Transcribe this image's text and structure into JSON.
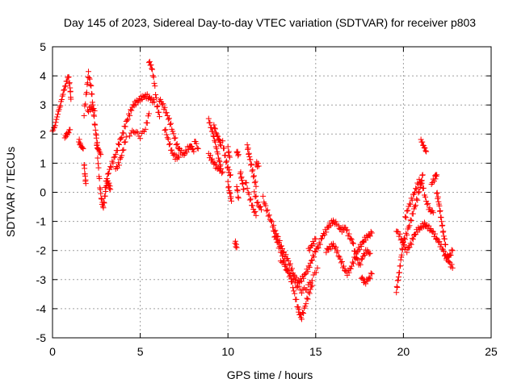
{
  "chart_data": {
    "type": "scatter",
    "title": "Day 145 of 2023, Sidereal Day-to-day VTEC variation (SDTVAR) for receiver p803",
    "xlabel": "GPS time / hours",
    "ylabel": "SDTVAR / TECUs",
    "xlim": [
      0,
      25
    ],
    "ylim": [
      -5,
      5
    ],
    "xticks": [
      0,
      5,
      10,
      15,
      20,
      25
    ],
    "yticks": [
      -5,
      -4,
      -3,
      -2,
      -1,
      0,
      1,
      2,
      3,
      4,
      5
    ],
    "grid": true,
    "marker": "+",
    "color": "#ff0000",
    "series": [
      {
        "name": "SDTVAR",
        "segments": [
          [
            [
              0.0,
              2.1
            ],
            [
              0.15,
              2.3
            ],
            [
              0.3,
              2.7
            ],
            [
              0.45,
              3.0
            ],
            [
              0.6,
              3.4
            ],
            [
              0.75,
              3.7
            ],
            [
              0.9,
              4.0
            ],
            [
              1.0,
              3.6
            ],
            [
              1.05,
              3.2
            ]
          ],
          [
            [
              0.7,
              1.9
            ],
            [
              0.85,
              2.0
            ],
            [
              1.0,
              2.15
            ]
          ],
          [
            [
              1.5,
              1.8
            ],
            [
              1.6,
              1.6
            ],
            [
              1.75,
              1.5
            ]
          ],
          [
            [
              1.8,
              1.0
            ],
            [
              1.85,
              0.6
            ],
            [
              1.9,
              0.3
            ]
          ],
          [
            [
              1.8,
              2.7
            ],
            [
              1.95,
              3.5
            ],
            [
              2.05,
              4.1
            ],
            [
              2.2,
              3.6
            ],
            [
              2.3,
              3.0
            ],
            [
              2.4,
              2.4
            ],
            [
              2.5,
              1.9
            ],
            [
              2.6,
              1.0
            ],
            [
              2.7,
              0.2
            ],
            [
              2.8,
              -0.3
            ],
            [
              2.9,
              -0.5
            ],
            [
              3.0,
              -0.1
            ],
            [
              3.1,
              0.4
            ],
            [
              3.2,
              0.3
            ],
            [
              3.3,
              0.1
            ]
          ],
          [
            [
              2.0,
              2.8
            ],
            [
              2.2,
              2.9
            ],
            [
              2.4,
              2.8
            ]
          ],
          [
            [
              2.5,
              1.8
            ],
            [
              2.6,
              1.5
            ],
            [
              2.75,
              1.3
            ]
          ],
          [
            [
              3.0,
              0.2
            ],
            [
              3.2,
              0.7
            ],
            [
              3.4,
              1.0
            ],
            [
              3.6,
              1.3
            ],
            [
              3.8,
              1.7
            ],
            [
              4.0,
              2.0
            ],
            [
              4.2,
              2.4
            ],
            [
              4.4,
              2.7
            ],
            [
              4.6,
              3.0
            ],
            [
              4.8,
              3.1
            ],
            [
              5.0,
              3.2
            ],
            [
              5.2,
              3.3
            ],
            [
              5.4,
              3.3
            ],
            [
              5.6,
              3.2
            ],
            [
              5.8,
              3.1
            ]
          ],
          [
            [
              3.6,
              0.8
            ],
            [
              3.8,
              1.0
            ],
            [
              4.0,
              1.4
            ],
            [
              4.2,
              1.9
            ]
          ],
          [
            [
              4.4,
              2.0
            ],
            [
              4.7,
              2.1
            ],
            [
              5.0,
              1.9
            ],
            [
              5.3,
              2.2
            ],
            [
              5.5,
              2.7
            ]
          ],
          [
            [
              5.5,
              4.5
            ],
            [
              5.65,
              4.3
            ],
            [
              5.8,
              3.8
            ],
            [
              5.95,
              3.0
            ],
            [
              6.1,
              2.6
            ]
          ],
          [
            [
              6.1,
              3.2
            ],
            [
              6.3,
              3.0
            ],
            [
              6.5,
              2.7
            ],
            [
              6.7,
              2.4
            ],
            [
              6.9,
              2.0
            ],
            [
              7.1,
              1.6
            ],
            [
              7.3,
              1.4
            ],
            [
              7.5,
              1.3
            ],
            [
              7.7,
              1.5
            ],
            [
              7.9,
              1.6
            ],
            [
              8.05,
              1.4
            ]
          ],
          [
            [
              6.4,
              2.2
            ],
            [
              6.6,
              1.8
            ],
            [
              6.8,
              1.4
            ],
            [
              7.0,
              1.2
            ],
            [
              7.2,
              1.2
            ]
          ],
          [
            [
              8.1,
              1.8
            ],
            [
              8.3,
              1.5
            ]
          ],
          [
            [
              8.9,
              2.5
            ],
            [
              9.05,
              2.2
            ],
            [
              9.2,
              1.9
            ],
            [
              9.35,
              1.5
            ],
            [
              9.5,
              1.1
            ],
            [
              9.6,
              0.8
            ]
          ],
          [
            [
              8.9,
              1.3
            ],
            [
              9.1,
              1.1
            ],
            [
              9.3,
              0.9
            ],
            [
              9.5,
              0.8
            ],
            [
              9.7,
              0.7
            ]
          ],
          [
            [
              9.2,
              2.3
            ],
            [
              9.35,
              2.0
            ],
            [
              9.5,
              1.8
            ],
            [
              9.6,
              1.6
            ]
          ],
          [
            [
              9.7,
              1.7
            ],
            [
              9.85,
              1.2
            ],
            [
              10.0,
              0.8
            ],
            [
              10.15,
              0.6
            ]
          ],
          [
            [
              10.0,
              1.5
            ],
            [
              10.1,
              1.2
            ]
          ],
          [
            [
              10.0,
              0.3
            ],
            [
              10.1,
              0.0
            ],
            [
              10.2,
              -0.3
            ]
          ],
          [
            [
              10.5,
              0.2
            ],
            [
              10.6,
              -0.2
            ]
          ],
          [
            [
              10.5,
              1.4
            ],
            [
              10.6,
              1.3
            ]
          ],
          [
            [
              10.7,
              0.7
            ],
            [
              10.8,
              0.4
            ],
            [
              10.9,
              0.1
            ]
          ],
          [
            [
              10.4,
              -1.7
            ],
            [
              10.5,
              -1.9
            ]
          ],
          [
            [
              11.0,
              0.4
            ],
            [
              11.2,
              -0.1
            ],
            [
              11.4,
              -0.5
            ],
            [
              11.6,
              -0.8
            ]
          ],
          [
            [
              11.1,
              1.6
            ],
            [
              11.2,
              1.3
            ],
            [
              11.3,
              1.0
            ],
            [
              11.45,
              0.6
            ],
            [
              11.6,
              0.2
            ]
          ],
          [
            [
              11.5,
              0.0
            ],
            [
              11.7,
              -0.4
            ],
            [
              11.9,
              -0.6
            ]
          ],
          [
            [
              11.6,
              1.0
            ],
            [
              11.75,
              0.9
            ]
          ],
          [
            [
              12.0,
              -0.2
            ],
            [
              12.2,
              -0.6
            ],
            [
              12.4,
              -0.9
            ],
            [
              12.6,
              -1.2
            ],
            [
              12.8,
              -1.5
            ],
            [
              13.0,
              -1.8
            ],
            [
              13.2,
              -2.1
            ],
            [
              13.4,
              -2.3
            ],
            [
              13.6,
              -2.6
            ],
            [
              13.8,
              -2.9
            ],
            [
              14.0,
              -3.1
            ],
            [
              14.2,
              -3.0
            ],
            [
              14.4,
              -2.8
            ],
            [
              14.6,
              -2.6
            ],
            [
              14.8,
              -2.3
            ],
            [
              15.0,
              -2.0
            ],
            [
              15.2,
              -1.8
            ],
            [
              15.4,
              -1.5
            ],
            [
              15.6,
              -1.3
            ],
            [
              15.8,
              -1.1
            ],
            [
              16.0,
              -1.0
            ],
            [
              16.2,
              -1.1
            ]
          ],
          [
            [
              12.6,
              -1.4
            ],
            [
              12.8,
              -1.7
            ],
            [
              13.0,
              -2.0
            ],
            [
              13.2,
              -2.4
            ],
            [
              13.4,
              -2.7
            ],
            [
              13.6,
              -3.0
            ],
            [
              13.8,
              -3.5
            ],
            [
              14.0,
              -4.0
            ],
            [
              14.1,
              -4.2
            ],
            [
              14.2,
              -4.3
            ],
            [
              14.4,
              -3.9
            ],
            [
              14.6,
              -3.5
            ],
            [
              14.8,
              -3.2
            ]
          ],
          [
            [
              13.0,
              -2.3
            ],
            [
              13.3,
              -2.6
            ],
            [
              13.6,
              -2.9
            ],
            [
              13.9,
              -3.2
            ],
            [
              14.2,
              -3.4
            ],
            [
              14.5,
              -3.3
            ],
            [
              14.8,
              -3.0
            ],
            [
              15.1,
              -2.6
            ]
          ],
          [
            [
              14.6,
              -2.0
            ],
            [
              14.8,
              -1.8
            ],
            [
              15.0,
              -1.6
            ]
          ],
          [
            [
              15.6,
              -2.0
            ],
            [
              15.8,
              -1.9
            ],
            [
              16.0,
              -1.8
            ],
            [
              16.2,
              -2.0
            ],
            [
              16.4,
              -2.3
            ],
            [
              16.6,
              -2.6
            ],
            [
              16.8,
              -2.8
            ],
            [
              17.0,
              -2.6
            ],
            [
              17.2,
              -2.3
            ],
            [
              17.4,
              -2.0
            ],
            [
              17.6,
              -1.8
            ],
            [
              17.8,
              -1.6
            ],
            [
              18.0,
              -1.5
            ],
            [
              18.2,
              -1.4
            ]
          ],
          [
            [
              16.3,
              -1.2
            ],
            [
              16.5,
              -1.3
            ],
            [
              16.7,
              -1.2
            ],
            [
              16.9,
              -1.5
            ],
            [
              17.1,
              -1.7
            ],
            [
              17.3,
              -2.2
            ],
            [
              17.5,
              -2.5
            ],
            [
              17.7,
              -2.2
            ],
            [
              17.9,
              -2.0
            ],
            [
              18.1,
              -2.1
            ]
          ],
          [
            [
              17.6,
              -2.9
            ],
            [
              17.8,
              -3.1
            ],
            [
              18.0,
              -3.0
            ],
            [
              18.2,
              -2.8
            ]
          ],
          [
            [
              19.6,
              -3.4
            ],
            [
              19.7,
              -3.0
            ],
            [
              19.8,
              -2.6
            ],
            [
              19.9,
              -2.1
            ],
            [
              20.0,
              -1.7
            ],
            [
              20.2,
              -1.4
            ],
            [
              20.4,
              -1.0
            ],
            [
              20.6,
              -0.6
            ],
            [
              20.8,
              -0.2
            ],
            [
              21.0,
              0.3
            ],
            [
              21.1,
              0.6
            ]
          ],
          [
            [
              19.6,
              -1.3
            ],
            [
              19.8,
              -1.5
            ],
            [
              20.0,
              -1.8
            ],
            [
              20.2,
              -2.0
            ],
            [
              20.4,
              -1.8
            ],
            [
              20.6,
              -1.5
            ],
            [
              20.8,
              -1.3
            ],
            [
              21.0,
              -1.2
            ],
            [
              21.2,
              -1.1
            ],
            [
              21.4,
              -1.2
            ],
            [
              21.6,
              -1.3
            ],
            [
              21.8,
              -1.5
            ],
            [
              22.0,
              -1.7
            ],
            [
              22.2,
              -1.9
            ],
            [
              22.4,
              -2.2
            ],
            [
              22.6,
              -2.4
            ],
            [
              22.8,
              -2.6
            ]
          ],
          [
            [
              20.1,
              -0.9
            ],
            [
              20.3,
              -0.5
            ],
            [
              20.5,
              -0.2
            ],
            [
              20.7,
              0.1
            ],
            [
              20.9,
              0.4
            ],
            [
              21.1,
              0.2
            ],
            [
              21.3,
              -0.3
            ],
            [
              21.5,
              -0.6
            ],
            [
              21.7,
              -0.7
            ]
          ],
          [
            [
              21.0,
              1.8
            ],
            [
              21.15,
              1.6
            ],
            [
              21.3,
              1.4
            ]
          ],
          [
            [
              21.6,
              0.3
            ],
            [
              21.8,
              0.5
            ],
            [
              21.9,
              0.6
            ]
          ],
          [
            [
              21.9,
              0.0
            ],
            [
              22.0,
              -0.3
            ],
            [
              22.1,
              -0.7
            ],
            [
              22.2,
              -1.1
            ],
            [
              22.3,
              -1.5
            ],
            [
              22.4,
              -1.8
            ]
          ],
          [
            [
              22.2,
              -1.9
            ],
            [
              22.4,
              -2.2
            ],
            [
              22.6,
              -2.2
            ],
            [
              22.8,
              -2.0
            ]
          ]
        ]
      }
    ]
  }
}
